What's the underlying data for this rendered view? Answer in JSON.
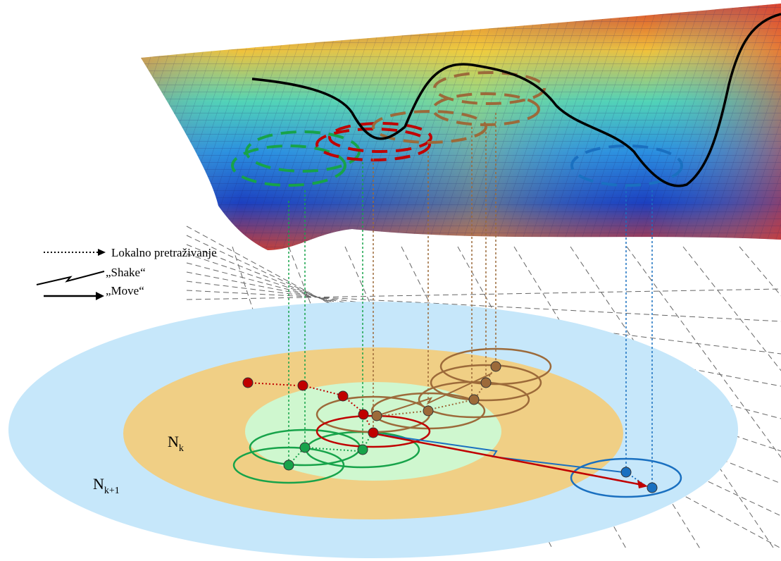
{
  "legend": {
    "local_search": "Lokalno pretraživanje",
    "shake": "„Shake“",
    "move": "„Move“"
  },
  "neighborhoods": {
    "inner": {
      "base": "N",
      "sub": "k"
    },
    "outer": {
      "base": "N",
      "sub": "k+1"
    }
  },
  "colors": {
    "outer_region": "#c6e7fa",
    "middle_region": "#f0cf85",
    "inner_region": "#cff7cf",
    "green": "#17a34a",
    "red": "#c00000",
    "brown": "#9c6a3a",
    "blue": "#1a70c0",
    "surface_curve": "#000000"
  }
}
